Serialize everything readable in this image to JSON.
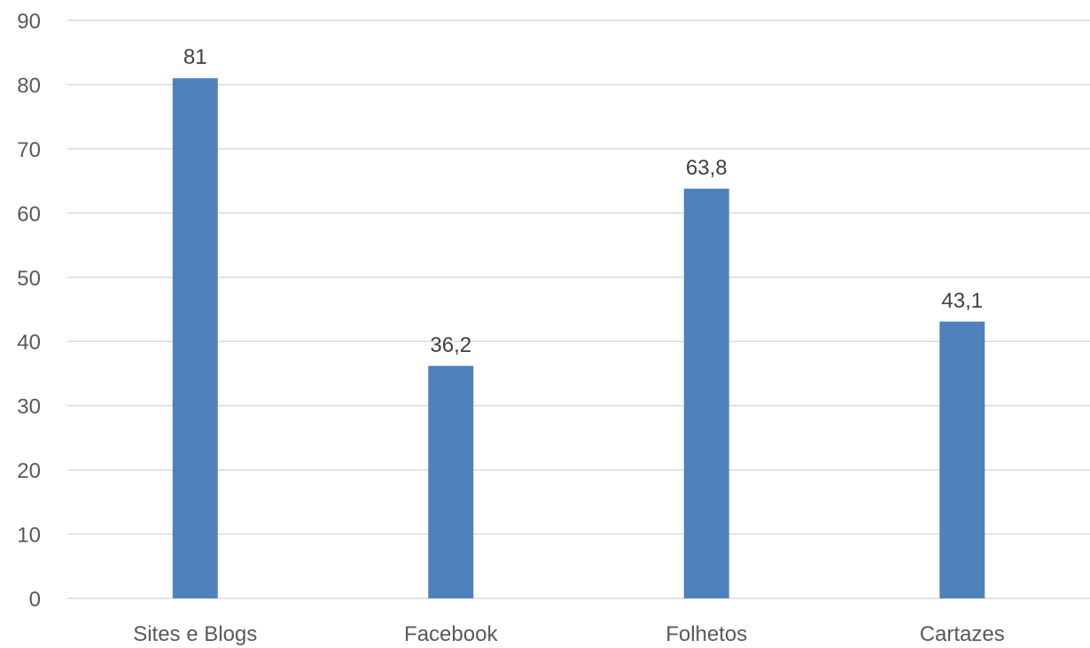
{
  "chart_data": {
    "type": "bar",
    "categories": [
      "Sites e Blogs",
      "Facebook",
      "Folhetos",
      "Cartazes"
    ],
    "values": [
      81,
      36.2,
      63.8,
      43.1
    ],
    "data_labels": [
      "81",
      "36,2",
      "63,8",
      "43,1"
    ],
    "y_ticks": [
      "0",
      "10",
      "20",
      "30",
      "40",
      "50",
      "60",
      "70",
      "80",
      "90"
    ],
    "ylim": [
      0,
      90
    ],
    "grid": true,
    "legend": "none",
    "bar_color": "#4f81bd"
  }
}
